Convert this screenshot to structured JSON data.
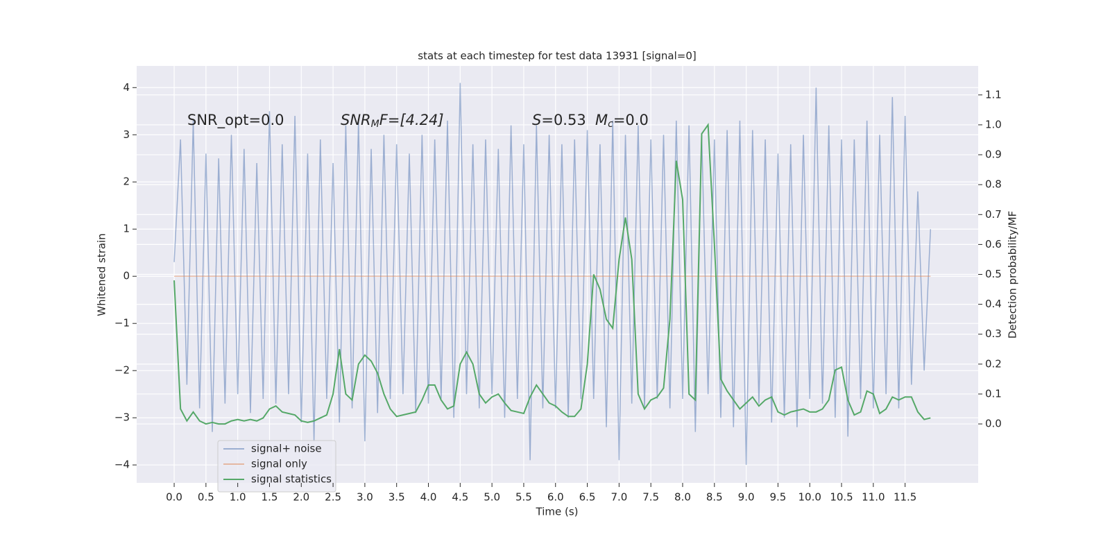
{
  "chart_data": {
    "type": "line",
    "title": "stats at each timestep for test data 13931 [signal=0]",
    "xlabel": "Time (s)",
    "ylabel": "Whitened strain",
    "y2label": "Detection probability/MF",
    "annotations": {
      "snr_opt": "SNR_opt=0.0",
      "snr_mf": {
        "symbol": "SNR",
        "sub": "M",
        "rest": "F=[4.24]"
      },
      "s": {
        "symbol": "S",
        "rest": "=0.53"
      },
      "mc": {
        "symbol": "M",
        "sub": "c",
        "rest": "=0.0"
      }
    },
    "xlim": [
      -0.59,
      12.65
    ],
    "ylim": [
      -4.38,
      4.46
    ],
    "y2lim": [
      -0.197,
      1.197
    ],
    "xticks": [
      {
        "value": 0,
        "label": "0.0"
      },
      0.5,
      {
        "value": 1,
        "label": "1.0"
      },
      1.5,
      {
        "value": 2,
        "label": "2.0"
      },
      2.5,
      {
        "value": 3,
        "label": "3.0"
      },
      3.5,
      {
        "value": 4,
        "label": "4.0"
      },
      4.5,
      {
        "value": 5,
        "label": "5.0"
      },
      5.5,
      {
        "value": 6,
        "label": "6.0"
      },
      6.5,
      {
        "value": 7,
        "label": "7.0"
      },
      7.5,
      {
        "value": 8,
        "label": "8.0"
      },
      8.5,
      {
        "value": 9,
        "label": "9.0"
      },
      9.5,
      {
        "value": 10,
        "label": "10.0"
      },
      10.5,
      {
        "value": 11,
        "label": "11.0"
      },
      11.5
    ],
    "yticks": [
      {
        "value": -4,
        "label": "−4"
      },
      {
        "value": -3,
        "label": "−3"
      },
      {
        "value": -2,
        "label": "−2"
      },
      {
        "value": -1,
        "label": "−1"
      },
      0,
      1,
      2,
      3,
      4
    ],
    "y2ticks": [
      {
        "value": 0,
        "label": "0.0"
      },
      0.1,
      0.2,
      0.3,
      0.4,
      0.5,
      0.6,
      0.7,
      0.8,
      0.9,
      {
        "value": 1,
        "label": "1.0"
      },
      1.1
    ],
    "grid": true,
    "legend": "lower left",
    "x": [
      0.0,
      0.1,
      0.2,
      0.3,
      0.4,
      0.5,
      0.6,
      0.7,
      0.8,
      0.9,
      1.0,
      1.1,
      1.2,
      1.3,
      1.4,
      1.5,
      1.6,
      1.7,
      1.8,
      1.9,
      2.0,
      2.1,
      2.2,
      2.3,
      2.4,
      2.5,
      2.6,
      2.7,
      2.8,
      2.9,
      3.0,
      3.1,
      3.2,
      3.3,
      3.4,
      3.5,
      3.6,
      3.7,
      3.8,
      3.9,
      4.0,
      4.1,
      4.2,
      4.3,
      4.4,
      4.5,
      4.6,
      4.7,
      4.8,
      4.9,
      5.0,
      5.1,
      5.2,
      5.3,
      5.4,
      5.5,
      5.6,
      5.7,
      5.8,
      5.9,
      6.0,
      6.1,
      6.2,
      6.3,
      6.4,
      6.5,
      6.6,
      6.7,
      6.8,
      6.9,
      7.0,
      7.1,
      7.2,
      7.3,
      7.4,
      7.5,
      7.6,
      7.7,
      7.8,
      7.9,
      8.0,
      8.1,
      8.2,
      8.3,
      8.4,
      8.5,
      8.6,
      8.7,
      8.8,
      8.9,
      9.0,
      9.1,
      9.2,
      9.3,
      9.4,
      9.5,
      9.6,
      9.7,
      9.8,
      9.9,
      10.0,
      10.1,
      10.2,
      10.3,
      10.4,
      10.5,
      10.6,
      10.7,
      10.8,
      10.9,
      11.0,
      11.1,
      11.2,
      11.3,
      11.4,
      11.5,
      11.6,
      11.7,
      11.8,
      11.9
    ],
    "series": [
      {
        "name": "signal+ noise",
        "color": "#4c72b0",
        "opacity": 0.5,
        "values": [
          0.3,
          2.9,
          -2.3,
          3.3,
          -2.8,
          2.6,
          -3.3,
          2.5,
          -2.7,
          3.0,
          -2.5,
          2.7,
          -2.9,
          2.4,
          -2.6,
          3.5,
          -2.7,
          2.8,
          -2.5,
          3.4,
          -3.1,
          2.6,
          -3.5,
          2.9,
          -2.6,
          2.4,
          -3.1,
          3.2,
          -2.8,
          3.3,
          -3.5,
          2.7,
          -2.9,
          3.0,
          -2.6,
          2.8,
          -2.5,
          2.6,
          -2.9,
          3.0,
          -2.7,
          2.9,
          -2.6,
          3.3,
          -3.0,
          4.1,
          -2.5,
          2.8,
          -2.8,
          2.9,
          -2.5,
          2.7,
          -3.0,
          3.2,
          -2.6,
          2.8,
          -3.9,
          3.2,
          -2.8,
          3.0,
          -2.8,
          2.8,
          -3.0,
          2.9,
          -2.6,
          3.1,
          -2.6,
          2.8,
          -3.2,
          3.3,
          -3.9,
          3.0,
          -2.7,
          3.2,
          -2.8,
          2.9,
          -2.6,
          3.0,
          -2.8,
          3.3,
          -2.6,
          3.2,
          -3.3,
          3.0,
          -2.5,
          2.9,
          -3.0,
          3.1,
          -3.2,
          3.3,
          -4.0,
          3.1,
          -2.7,
          2.9,
          -3.1,
          2.6,
          -3.0,
          2.8,
          -3.2,
          3.0,
          -2.6,
          4.0,
          -2.7,
          3.2,
          -3.0,
          2.9,
          -3.4,
          2.9,
          -2.6,
          3.3,
          -2.8,
          3.0,
          -2.5,
          3.8,
          -2.8,
          3.4,
          -2.3,
          1.8,
          -2.0,
          1.0
        ]
      },
      {
        "name": "signal only",
        "color": "#dd8452",
        "opacity": 0.5,
        "values": [
          0,
          0,
          0,
          0,
          0,
          0,
          0,
          0,
          0,
          0,
          0,
          0,
          0,
          0,
          0,
          0,
          0,
          0,
          0,
          0,
          0,
          0,
          0,
          0,
          0,
          0,
          0,
          0,
          0,
          0,
          0,
          0,
          0,
          0,
          0,
          0,
          0,
          0,
          0,
          0,
          0,
          0,
          0,
          0,
          0,
          0,
          0,
          0,
          0,
          0,
          0,
          0,
          0,
          0,
          0,
          0,
          0,
          0,
          0,
          0,
          0,
          0,
          0,
          0,
          0,
          0,
          0,
          0,
          0,
          0,
          0,
          0,
          0,
          0,
          0,
          0,
          0,
          0,
          0,
          0,
          0,
          0,
          0,
          0,
          0,
          0,
          0,
          0,
          0,
          0,
          0,
          0,
          0,
          0,
          0,
          0,
          0,
          0,
          0,
          0,
          0,
          0,
          0,
          0,
          0,
          0,
          0,
          0,
          0,
          0,
          0,
          0,
          0,
          0,
          0,
          0,
          0,
          0,
          0,
          0
        ]
      },
      {
        "name": "signal statistics",
        "color": "#55a868",
        "opacity": 1,
        "axis": "y2",
        "values": [
          0.48,
          0.05,
          0.01,
          0.04,
          0.01,
          0.0,
          0.005,
          0.0,
          0.0,
          0.01,
          0.015,
          0.01,
          0.015,
          0.01,
          0.02,
          0.05,
          0.06,
          0.04,
          0.035,
          0.03,
          0.01,
          0.005,
          0.01,
          0.02,
          0.03,
          0.1,
          0.25,
          0.1,
          0.08,
          0.2,
          0.23,
          0.21,
          0.17,
          0.1,
          0.05,
          0.025,
          0.03,
          0.035,
          0.04,
          0.08,
          0.13,
          0.13,
          0.08,
          0.05,
          0.06,
          0.2,
          0.24,
          0.2,
          0.1,
          0.07,
          0.09,
          0.1,
          0.07,
          0.045,
          0.04,
          0.035,
          0.09,
          0.13,
          0.1,
          0.07,
          0.06,
          0.04,
          0.025,
          0.025,
          0.05,
          0.2,
          0.5,
          0.45,
          0.35,
          0.32,
          0.55,
          0.69,
          0.55,
          0.1,
          0.05,
          0.08,
          0.09,
          0.12,
          0.35,
          0.88,
          0.75,
          0.1,
          0.08,
          0.97,
          1.0,
          0.6,
          0.15,
          0.11,
          0.08,
          0.05,
          0.07,
          0.09,
          0.06,
          0.08,
          0.09,
          0.04,
          0.03,
          0.04,
          0.045,
          0.05,
          0.04,
          0.04,
          0.05,
          0.08,
          0.18,
          0.19,
          0.08,
          0.03,
          0.04,
          0.11,
          0.1,
          0.035,
          0.05,
          0.09,
          0.08,
          0.09,
          0.09,
          0.04,
          0.015,
          0.02
        ]
      }
    ]
  }
}
